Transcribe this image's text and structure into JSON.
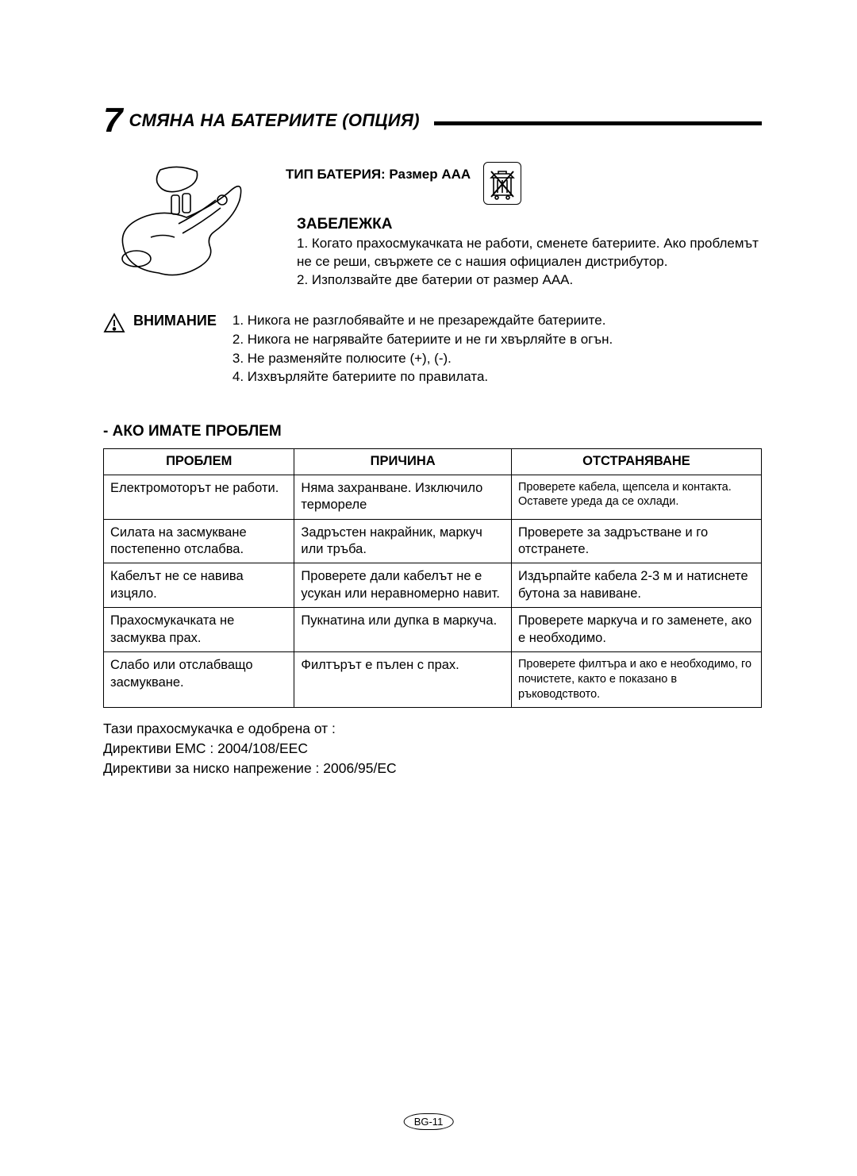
{
  "section": {
    "number": "7",
    "title": "СМЯНА НА БАТЕРИИТЕ (ОПЦИЯ)"
  },
  "battery_type": "ТИП БАТЕРИЯ: Размер AAA",
  "note": {
    "heading": "ЗАБЕЛЕЖКА",
    "items": [
      "1. Когато прахосмукачката не работи, сменете батериите. Ако проблемът не се реши, свържете се с нашия официален дистрибутор.",
      "2. Използвайте две батерии от размер AAA."
    ]
  },
  "caution": {
    "heading": "ВНИМАНИЕ",
    "items": [
      "1. Никога не разглобявайте и не презареждайте батериите.",
      "2. Никога не нагрявайте батериите и не ги хвърляйте в огън.",
      "3. Не разменяйте полюсите (+), (-).",
      "4. Изхвърляйте батериите по правилата."
    ]
  },
  "troubleshoot": {
    "heading": "- АКО ИМАТЕ ПРОБЛЕМ",
    "columns": [
      "ПРОБЛЕМ",
      "ПРИЧИНА",
      "ОТСТРАНЯВАНЕ"
    ],
    "rows": [
      {
        "problem": "Електромоторът не работи.",
        "cause": "Няма захранване. Изключило термореле",
        "solution": "Проверете кабела, щепсела и контакта. Оставете уреда да се охлади.",
        "solution_small": true
      },
      {
        "problem": "Силата на засмукване постепенно отслабва.",
        "cause": "Задръстен накрайник, маркуч или тръба.",
        "solution": "Проверете за задръстване и го отстранете."
      },
      {
        "problem": "Кабелът не се навива изцяло.",
        "cause": "Проверете дали кабелът не е усукан или неравномерно навит.",
        "solution": "Издърпайте кабела 2-3 м и натиснете бутона за навиване."
      },
      {
        "problem": "Прахосмукачката не засмуква прах.",
        "cause": "Пукнатина или дупка в маркуча.",
        "solution": "Проверете маркуча и го заменете, ако е необходимо."
      },
      {
        "problem": "Слабо или отслабващо засмукване.",
        "cause": "Филтърът е пълен с прах.",
        "solution": "Проверете филтъра и ако е необходимо, го почистете, както е показано в ръководството.",
        "solution_small": true
      }
    ]
  },
  "approvals": {
    "line1": "Тази прахосмукачка е одобрена от :",
    "line2": "Директиви EMC : 2004/108/EEC",
    "line3": "Директиви за ниско напрежение : 2006/95/EC"
  },
  "page_number": "BG-11",
  "colors": {
    "text": "#000000",
    "background": "#ffffff",
    "border": "#000000"
  },
  "typography": {
    "body_fontsize": 17,
    "heading_fontsize": 22,
    "section_number_fontsize": 44,
    "table_fontsize": 16.5
  }
}
